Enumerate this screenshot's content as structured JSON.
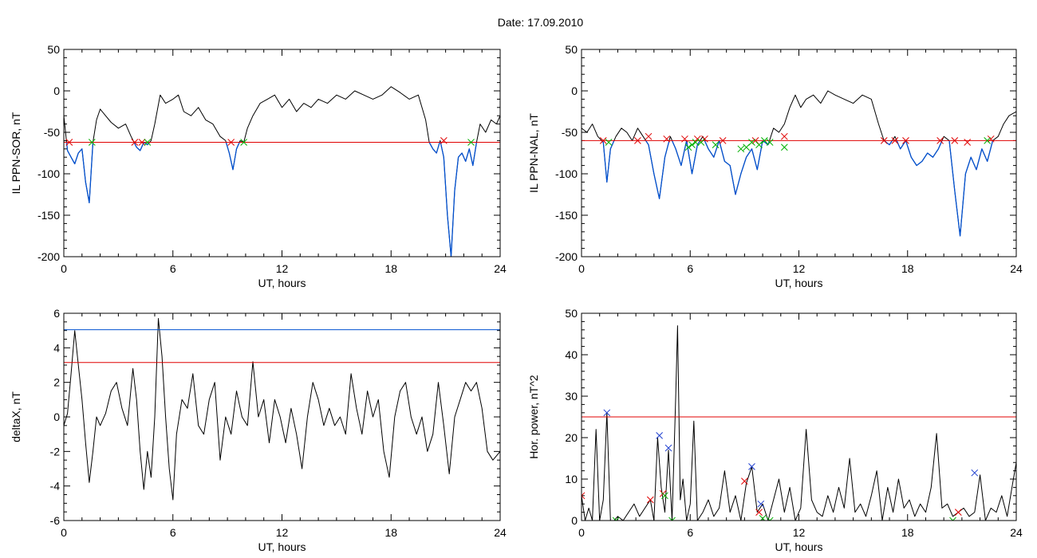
{
  "figure": {
    "date_label": "Date:  17.09.2010"
  },
  "chart_data": [
    {
      "id": "p1",
      "type": "line",
      "xlabel": "UT, hours",
      "ylabel": "IL PPN-SOR, nT",
      "xlim": [
        0,
        24
      ],
      "ylim": [
        -200,
        50
      ],
      "xticks": [
        0,
        6,
        12,
        18,
        24
      ],
      "yticks": [
        -200,
        -150,
        -100,
        -50,
        0,
        50
      ],
      "threshold_lines": [
        {
          "y": -62,
          "color": "#e00000"
        }
      ],
      "highlight_below": -62,
      "highlight_color": "#0050d0",
      "series": [
        {
          "color": "#000000",
          "x": [
            0,
            0.2,
            0.4,
            0.6,
            0.8,
            1.0,
            1.2,
            1.4,
            1.6,
            1.8,
            2.0,
            2.3,
            2.6,
            3.0,
            3.4,
            3.7,
            4.0,
            4.2,
            4.4,
            4.6,
            4.8,
            5.0,
            5.3,
            5.6,
            6.0,
            6.3,
            6.6,
            7.0,
            7.4,
            7.8,
            8.2,
            8.6,
            8.9,
            9.1,
            9.3,
            9.5,
            9.7,
            9.9,
            10.1,
            10.4,
            10.8,
            11.2,
            11.6,
            12.0,
            12.4,
            12.8,
            13.2,
            13.6,
            14.0,
            14.5,
            15.0,
            15.5,
            16.0,
            16.5,
            17.0,
            17.5,
            18.0,
            18.5,
            19.0,
            19.5,
            19.9,
            20.1,
            20.3,
            20.5,
            20.7,
            20.9,
            21.1,
            21.3,
            21.5,
            21.7,
            21.9,
            22.1,
            22.3,
            22.5,
            22.7,
            22.9,
            23.2,
            23.5,
            23.8,
            24.0
          ],
          "y": [
            -30,
            -72,
            -80,
            -88,
            -75,
            -70,
            -110,
            -135,
            -62,
            -35,
            -22,
            -30,
            -38,
            -45,
            -40,
            -55,
            -68,
            -72,
            -62,
            -65,
            -60,
            -40,
            -5,
            -15,
            -10,
            -5,
            -25,
            -30,
            -20,
            -35,
            -40,
            -55,
            -60,
            -75,
            -95,
            -70,
            -60,
            -62,
            -45,
            -30,
            -15,
            -10,
            -5,
            -20,
            -10,
            -25,
            -15,
            -20,
            -10,
            -15,
            -5,
            -10,
            0,
            -5,
            -10,
            -5,
            5,
            -2,
            -10,
            -5,
            -35,
            -62,
            -70,
            -75,
            -60,
            -80,
            -150,
            -200,
            -120,
            -80,
            -75,
            -85,
            -70,
            -90,
            -62,
            -40,
            -50,
            -35,
            -40,
            -30
          ]
        }
      ],
      "markers": [
        {
          "color": "#e00000",
          "points": [
            [
              0.3,
              -62
            ],
            [
              3.9,
              -62
            ],
            [
              4.3,
              -62
            ],
            [
              9.2,
              -62
            ],
            [
              20.9,
              -60
            ]
          ]
        },
        {
          "color": "#00b000",
          "points": [
            [
              1.55,
              -62
            ],
            [
              4.6,
              -62
            ],
            [
              9.9,
              -62
            ],
            [
              22.4,
              -62
            ]
          ]
        }
      ]
    },
    {
      "id": "p2",
      "type": "line",
      "xlabel": "UT, hours",
      "ylabel": "IL PPN-NAL, nT",
      "xlim": [
        0,
        24
      ],
      "ylim": [
        -200,
        50
      ],
      "xticks": [
        0,
        6,
        12,
        18,
        24
      ],
      "yticks": [
        -200,
        -150,
        -100,
        -50,
        0,
        50
      ],
      "threshold_lines": [
        {
          "y": -60,
          "color": "#e00000"
        }
      ],
      "highlight_below": -60,
      "highlight_color": "#0050d0",
      "series": [
        {
          "color": "#000000",
          "x": [
            0,
            0.3,
            0.6,
            0.9,
            1.2,
            1.4,
            1.6,
            1.9,
            2.2,
            2.5,
            2.8,
            3.1,
            3.4,
            3.7,
            4.0,
            4.3,
            4.6,
            4.9,
            5.2,
            5.5,
            5.8,
            6.1,
            6.4,
            6.7,
            7.0,
            7.3,
            7.6,
            7.9,
            8.2,
            8.5,
            8.8,
            9.1,
            9.4,
            9.7,
            10.0,
            10.3,
            10.6,
            10.9,
            11.2,
            11.5,
            11.8,
            12.1,
            12.4,
            12.8,
            13.2,
            13.6,
            14.0,
            14.5,
            15.0,
            15.5,
            16.0,
            16.4,
            16.7,
            17.0,
            17.3,
            17.6,
            17.9,
            18.2,
            18.5,
            18.8,
            19.1,
            19.4,
            19.7,
            20.0,
            20.3,
            20.6,
            20.9,
            21.2,
            21.5,
            21.8,
            22.1,
            22.4,
            22.7,
            23.0,
            23.3,
            23.6,
            24.0
          ],
          "y": [
            -45,
            -50,
            -40,
            -55,
            -62,
            -110,
            -70,
            -55,
            -45,
            -50,
            -60,
            -45,
            -55,
            -65,
            -100,
            -130,
            -80,
            -55,
            -70,
            -90,
            -60,
            -100,
            -65,
            -55,
            -70,
            -80,
            -60,
            -85,
            -90,
            -125,
            -100,
            -80,
            -70,
            -95,
            -60,
            -65,
            -45,
            -50,
            -40,
            -20,
            -5,
            -20,
            -10,
            -5,
            -15,
            0,
            -5,
            -10,
            -15,
            -5,
            -10,
            -40,
            -60,
            -65,
            -55,
            -70,
            -60,
            -80,
            -90,
            -85,
            -75,
            -80,
            -70,
            -55,
            -60,
            -120,
            -175,
            -100,
            -80,
            -95,
            -70,
            -85,
            -60,
            -55,
            -40,
            -30,
            -25
          ]
        }
      ],
      "markers": [
        {
          "color": "#e00000",
          "points": [
            [
              1.2,
              -60
            ],
            [
              3.1,
              -60
            ],
            [
              3.7,
              -55
            ],
            [
              4.7,
              -58
            ],
            [
              5.7,
              -58
            ],
            [
              6.4,
              -58
            ],
            [
              6.8,
              -58
            ],
            [
              7.8,
              -60
            ],
            [
              9.6,
              -60
            ],
            [
              11.2,
              -55
            ],
            [
              16.7,
              -60
            ],
            [
              17.3,
              -60
            ],
            [
              17.9,
              -60
            ],
            [
              19.8,
              -60
            ],
            [
              20.6,
              -60
            ],
            [
              21.3,
              -62
            ],
            [
              22.6,
              -58
            ]
          ]
        },
        {
          "color": "#00b000",
          "points": [
            [
              1.5,
              -62
            ],
            [
              5.9,
              -68
            ],
            [
              6.1,
              -65
            ],
            [
              6.3,
              -62
            ],
            [
              6.6,
              -62
            ],
            [
              7.4,
              -65
            ],
            [
              8.8,
              -70
            ],
            [
              9.1,
              -68
            ],
            [
              9.4,
              -62
            ],
            [
              9.8,
              -65
            ],
            [
              10.1,
              -60
            ],
            [
              10.4,
              -62
            ],
            [
              11.2,
              -68
            ],
            [
              22.4,
              -60
            ]
          ]
        }
      ]
    },
    {
      "id": "p3",
      "type": "line",
      "xlabel": "UT, hours",
      "ylabel": "deltaX, nT",
      "xlim": [
        0,
        24
      ],
      "ylim": [
        -6,
        6
      ],
      "xticks": [
        0,
        6,
        12,
        18,
        24
      ],
      "yticks": [
        -6,
        -4,
        -2,
        0,
        2,
        4,
        6
      ],
      "threshold_lines": [
        {
          "y": 5.05,
          "color": "#0050d0"
        },
        {
          "y": 3.15,
          "color": "#e00000"
        }
      ],
      "series": [
        {
          "color": "#000000",
          "x": [
            0,
            0.2,
            0.4,
            0.6,
            0.8,
            1.0,
            1.2,
            1.4,
            1.6,
            1.8,
            2.0,
            2.3,
            2.6,
            2.9,
            3.2,
            3.5,
            3.8,
            4.0,
            4.2,
            4.4,
            4.6,
            4.8,
            5.0,
            5.2,
            5.4,
            5.6,
            5.8,
            6.0,
            6.2,
            6.5,
            6.8,
            7.1,
            7.4,
            7.7,
            8.0,
            8.3,
            8.6,
            8.9,
            9.2,
            9.5,
            9.8,
            10.1,
            10.4,
            10.7,
            11.0,
            11.3,
            11.6,
            11.9,
            12.2,
            12.5,
            12.8,
            13.1,
            13.4,
            13.7,
            14.0,
            14.3,
            14.6,
            14.9,
            15.2,
            15.5,
            15.8,
            16.1,
            16.4,
            16.7,
            17.0,
            17.3,
            17.6,
            17.9,
            18.2,
            18.5,
            18.8,
            19.1,
            19.4,
            19.7,
            20.0,
            20.3,
            20.6,
            20.9,
            21.2,
            21.5,
            21.8,
            22.1,
            22.4,
            22.7,
            23.0,
            23.3,
            23.6,
            24.0
          ],
          "y": [
            -0.5,
            0.2,
            2.5,
            5,
            3,
            1,
            -1.5,
            -3.8,
            -2,
            0,
            -0.5,
            0.2,
            1.5,
            2,
            0.5,
            -0.5,
            2.8,
            1,
            -2,
            -4.2,
            -2,
            -3.5,
            0,
            5.7,
            3.5,
            0,
            -3,
            -4.8,
            -1,
            1,
            0.5,
            2.5,
            -0.5,
            -1,
            1,
            2,
            -2.5,
            0,
            -1,
            1.5,
            0,
            -0.5,
            3.2,
            0,
            1,
            -1.5,
            1,
            0,
            -1.5,
            0.5,
            -1,
            -3,
            0,
            2,
            1,
            -0.5,
            0.5,
            -0.5,
            0,
            -1,
            2.5,
            0.5,
            -1,
            1.5,
            0,
            1,
            -2,
            -3.5,
            0,
            1.5,
            2,
            0,
            -1,
            0,
            -2,
            -1,
            2,
            -0.5,
            -3.3,
            0,
            1,
            2,
            1.5,
            2,
            0.5,
            -2,
            -2.5,
            -2
          ]
        }
      ],
      "markers": []
    },
    {
      "id": "p4",
      "type": "line",
      "xlabel": "UT, hours",
      "ylabel": "Hor. power, nT^2",
      "xlim": [
        0,
        24
      ],
      "ylim": [
        0,
        50
      ],
      "xticks": [
        0,
        6,
        12,
        18,
        24
      ],
      "yticks": [
        0,
        10,
        20,
        30,
        40,
        50
      ],
      "threshold_lines": [
        {
          "y": 25,
          "color": "#e00000"
        }
      ],
      "series": [
        {
          "color": "#000000",
          "x": [
            0,
            0.2,
            0.4,
            0.6,
            0.8,
            1.0,
            1.2,
            1.4,
            1.6,
            1.8,
            2.0,
            2.3,
            2.6,
            2.9,
            3.2,
            3.5,
            3.8,
            4.0,
            4.2,
            4.4,
            4.6,
            4.8,
            5.0,
            5.2,
            5.3,
            5.45,
            5.6,
            5.8,
            6.0,
            6.2,
            6.4,
            6.7,
            7.0,
            7.3,
            7.6,
            7.9,
            8.2,
            8.5,
            8.8,
            9.1,
            9.4,
            9.7,
            10.0,
            10.3,
            10.6,
            10.9,
            11.2,
            11.5,
            11.8,
            12.1,
            12.4,
            12.7,
            13.0,
            13.3,
            13.6,
            13.9,
            14.2,
            14.5,
            14.8,
            15.1,
            15.4,
            15.7,
            16.0,
            16.3,
            16.6,
            16.9,
            17.2,
            17.5,
            17.8,
            18.1,
            18.4,
            18.7,
            19.0,
            19.3,
            19.6,
            19.9,
            20.2,
            20.5,
            20.8,
            21.1,
            21.4,
            21.7,
            22.0,
            22.3,
            22.6,
            22.9,
            23.2,
            23.5,
            23.8,
            24.0
          ],
          "y": [
            6,
            0,
            3,
            0,
            22,
            0,
            5,
            26,
            0,
            0,
            1,
            0,
            2,
            4,
            1,
            3,
            5,
            0,
            20,
            8,
            2,
            17,
            0,
            30,
            47,
            5,
            10,
            0,
            4,
            24,
            0,
            2,
            5,
            1,
            3,
            12,
            2,
            6,
            0,
            9,
            13,
            2,
            4,
            0,
            5,
            10,
            2,
            8,
            0,
            3,
            22,
            5,
            2,
            1,
            6,
            2,
            8,
            3,
            15,
            2,
            4,
            1,
            6,
            12,
            0,
            8,
            2,
            10,
            3,
            5,
            1,
            4,
            2,
            8,
            21,
            3,
            4,
            1,
            2,
            3,
            1,
            2,
            11,
            0,
            3,
            2,
            6,
            1,
            9,
            14
          ]
        }
      ],
      "markers": [
        {
          "color": "#2040d0",
          "points": [
            [
              1.4,
              26
            ],
            [
              4.3,
              20.5
            ],
            [
              4.8,
              17.5
            ],
            [
              9.4,
              13
            ],
            [
              9.9,
              4
            ],
            [
              21.7,
              11.5
            ]
          ]
        },
        {
          "color": "#e00000",
          "points": [
            [
              0,
              6
            ],
            [
              3.8,
              5
            ],
            [
              4.5,
              6.5
            ],
            [
              9.0,
              9.5
            ],
            [
              9.8,
              2
            ],
            [
              20.8,
              2
            ]
          ]
        },
        {
          "color": "#00b000",
          "points": [
            [
              1.9,
              0
            ],
            [
              4.6,
              6
            ],
            [
              5.0,
              0
            ],
            [
              10.0,
              0.5
            ],
            [
              10.4,
              0
            ],
            [
              20.5,
              0
            ]
          ]
        }
      ]
    }
  ]
}
